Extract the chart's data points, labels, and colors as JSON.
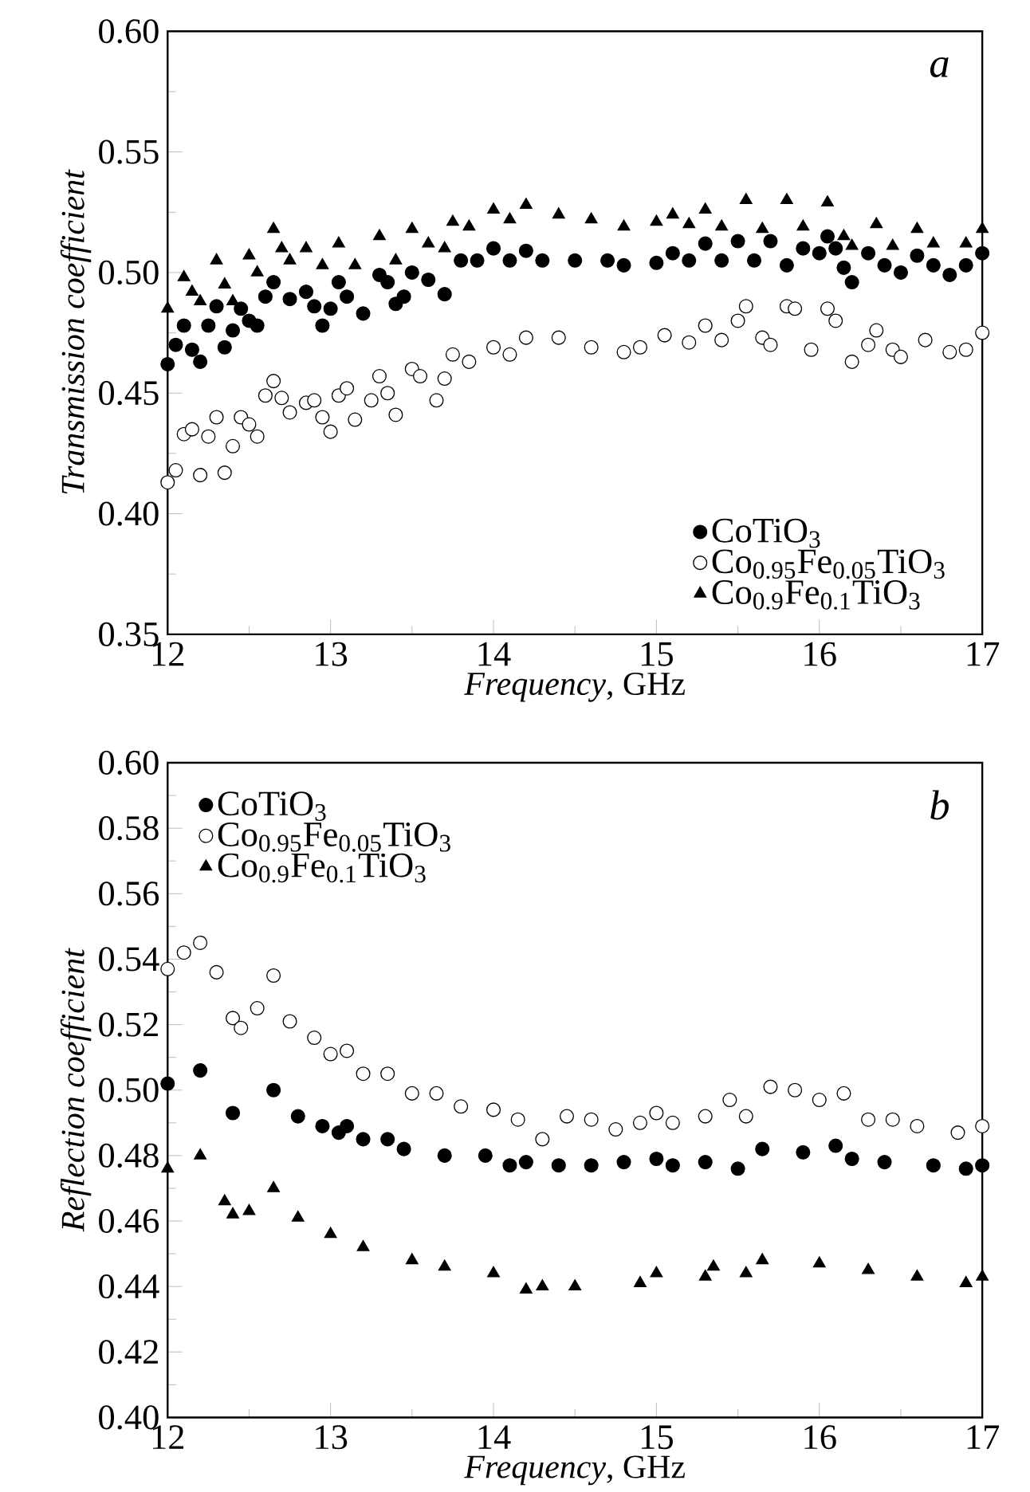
{
  "chart_data": [
    {
      "type": "scatter",
      "xlabel": "*Frequency*, GHz",
      "ylabel": "Transmission coefficient",
      "annotations": [
        "a"
      ],
      "xlim": [
        12,
        17
      ],
      "ylim": [
        0.35,
        0.6
      ],
      "xticks": [
        12,
        13,
        14,
        15,
        16,
        17
      ],
      "yticks": [
        {
          "value": 0.35,
          "label": "0.35"
        },
        {
          "value": 0.4,
          "label": "0.40"
        },
        {
          "value": 0.45,
          "label": "0.45"
        },
        {
          "value": 0.5,
          "label": "0.50"
        },
        {
          "value": 0.55,
          "label": "0.55"
        },
        {
          "value": 0.6,
          "label": "0.60"
        }
      ],
      "legend": "bottom right",
      "grid": false,
      "series": [
        {
          "name": "CoTiO$_{3}$",
          "color": "#000000",
          "marker": "circle",
          "x": [
            12.0,
            12.05,
            12.1,
            12.15,
            12.2,
            12.25,
            12.3,
            12.35,
            12.4,
            12.45,
            12.5,
            12.55,
            12.6,
            12.65,
            12.75,
            12.85,
            12.9,
            12.95,
            13.0,
            13.05,
            13.1,
            13.2,
            13.3,
            13.35,
            13.4,
            13.45,
            13.5,
            13.6,
            13.7,
            13.8,
            13.9,
            14.0,
            14.1,
            14.2,
            14.3,
            14.5,
            14.7,
            14.8,
            15.0,
            15.1,
            15.2,
            15.3,
            15.4,
            15.5,
            15.6,
            15.7,
            15.8,
            15.9,
            16.0,
            16.05,
            16.1,
            16.15,
            16.2,
            16.3,
            16.4,
            16.5,
            16.6,
            16.7,
            16.8,
            16.9,
            17.0
          ],
          "values": [
            0.462,
            0.47,
            0.478,
            0.468,
            0.463,
            0.478,
            0.486,
            0.469,
            0.476,
            0.485,
            0.48,
            0.478,
            0.49,
            0.496,
            0.489,
            0.492,
            0.486,
            0.478,
            0.485,
            0.496,
            0.49,
            0.483,
            0.499,
            0.496,
            0.487,
            0.49,
            0.5,
            0.497,
            0.491,
            0.505,
            0.505,
            0.51,
            0.505,
            0.509,
            0.505,
            0.505,
            0.505,
            0.503,
            0.504,
            0.508,
            0.505,
            0.512,
            0.505,
            0.513,
            0.505,
            0.513,
            0.503,
            0.51,
            0.508,
            0.515,
            0.51,
            0.502,
            0.496,
            0.508,
            0.503,
            0.5,
            0.507,
            0.503,
            0.499,
            0.503,
            0.508
          ]
        },
        {
          "name": "Co$_{0.95}$Fe$_{0.05}$TiO$_{3}$",
          "color": "#ffffff",
          "marker": "circle",
          "x": [
            12.0,
            12.05,
            12.1,
            12.15,
            12.2,
            12.25,
            12.3,
            12.35,
            12.4,
            12.45,
            12.5,
            12.55,
            12.6,
            12.65,
            12.7,
            12.75,
            12.85,
            12.9,
            12.95,
            13.0,
            13.05,
            13.1,
            13.15,
            13.25,
            13.3,
            13.35,
            13.4,
            13.5,
            13.55,
            13.65,
            13.7,
            13.75,
            13.85,
            14.0,
            14.1,
            14.2,
            14.4,
            14.6,
            14.8,
            14.9,
            15.05,
            15.2,
            15.3,
            15.4,
            15.5,
            15.55,
            15.65,
            15.7,
            15.8,
            15.85,
            15.95,
            16.05,
            16.1,
            16.2,
            16.3,
            16.35,
            16.45,
            16.5,
            16.65,
            16.8,
            16.9,
            17.0
          ],
          "values": [
            0.413,
            0.418,
            0.433,
            0.435,
            0.416,
            0.432,
            0.44,
            0.417,
            0.428,
            0.44,
            0.437,
            0.432,
            0.449,
            0.455,
            0.448,
            0.442,
            0.446,
            0.447,
            0.44,
            0.434,
            0.449,
            0.452,
            0.439,
            0.447,
            0.457,
            0.45,
            0.441,
            0.46,
            0.457,
            0.447,
            0.456,
            0.466,
            0.463,
            0.469,
            0.466,
            0.473,
            0.473,
            0.469,
            0.467,
            0.469,
            0.474,
            0.471,
            0.478,
            0.472,
            0.48,
            0.486,
            0.473,
            0.47,
            0.486,
            0.485,
            0.468,
            0.485,
            0.48,
            0.463,
            0.47,
            0.476,
            0.468,
            0.465,
            0.472,
            0.467,
            0.468,
            0.475
          ]
        },
        {
          "name": "Co$_{0.9}$Fe$_{0.1}$TiO$_{3}$",
          "color": "#000000",
          "marker": "triangle",
          "x": [
            12.0,
            12.1,
            12.15,
            12.2,
            12.3,
            12.35,
            12.4,
            12.5,
            12.55,
            12.65,
            12.7,
            12.75,
            12.85,
            12.95,
            13.05,
            13.15,
            13.3,
            13.4,
            13.5,
            13.6,
            13.7,
            13.75,
            13.85,
            14.0,
            14.1,
            14.2,
            14.4,
            14.6,
            14.8,
            15.0,
            15.1,
            15.2,
            15.3,
            15.4,
            15.55,
            15.65,
            15.8,
            15.9,
            16.05,
            16.15,
            16.2,
            16.35,
            16.45,
            16.6,
            16.7,
            16.9,
            17.0
          ],
          "values": [
            0.485,
            0.498,
            0.492,
            0.488,
            0.505,
            0.495,
            0.488,
            0.507,
            0.5,
            0.518,
            0.51,
            0.505,
            0.51,
            0.503,
            0.512,
            0.503,
            0.515,
            0.505,
            0.518,
            0.512,
            0.51,
            0.521,
            0.519,
            0.526,
            0.522,
            0.528,
            0.524,
            0.522,
            0.519,
            0.521,
            0.524,
            0.52,
            0.526,
            0.519,
            0.53,
            0.518,
            0.53,
            0.519,
            0.529,
            0.515,
            0.511,
            0.52,
            0.511,
            0.518,
            0.512,
            0.512,
            0.518
          ]
        }
      ]
    },
    {
      "type": "scatter",
      "xlabel": "*Frequency*, GHz",
      "ylabel": "Reflection coefficient",
      "annotations": [
        "b"
      ],
      "xlim": [
        12,
        17
      ],
      "ylim": [
        0.4,
        0.6
      ],
      "xticks": [
        12,
        13,
        14,
        15,
        16,
        17
      ],
      "yticks": [
        {
          "value": 0.4,
          "label": "0.40"
        },
        {
          "value": 0.42,
          "label": "0.42"
        },
        {
          "value": 0.44,
          "label": "0.44"
        },
        {
          "value": 0.46,
          "label": "0.46"
        },
        {
          "value": 0.48,
          "label": "0.48"
        },
        {
          "value": 0.5,
          "label": "0.50"
        },
        {
          "value": 0.52,
          "label": "0.52"
        },
        {
          "value": 0.54,
          "label": "0.54"
        },
        {
          "value": 0.56,
          "label": "0.56"
        },
        {
          "value": 0.58,
          "label": "0.58"
        },
        {
          "value": 0.6,
          "label": "0.60"
        }
      ],
      "legend": "top left",
      "grid": false,
      "series": [
        {
          "name": "CoTiO$_{3}$",
          "color": "#000000",
          "marker": "circle",
          "x": [
            12.0,
            12.2,
            12.4,
            12.65,
            12.8,
            12.95,
            13.05,
            13.1,
            13.2,
            13.35,
            13.45,
            13.7,
            13.95,
            14.1,
            14.2,
            14.4,
            14.6,
            14.8,
            15.0,
            15.1,
            15.3,
            15.5,
            15.65,
            15.9,
            16.1,
            16.2,
            16.4,
            16.7,
            16.9,
            17.0
          ],
          "values": [
            0.502,
            0.506,
            0.493,
            0.5,
            0.492,
            0.489,
            0.487,
            0.489,
            0.485,
            0.485,
            0.482,
            0.48,
            0.48,
            0.477,
            0.478,
            0.477,
            0.477,
            0.478,
            0.479,
            0.477,
            0.478,
            0.476,
            0.482,
            0.481,
            0.483,
            0.479,
            0.478,
            0.477,
            0.476,
            0.477
          ]
        },
        {
          "name": "Co$_{0.95}$Fe$_{0.05}$TiO$_{3}$",
          "color": "#ffffff",
          "marker": "circle",
          "x": [
            12.0,
            12.1,
            12.2,
            12.3,
            12.4,
            12.45,
            12.55,
            12.65,
            12.75,
            12.9,
            13.0,
            13.1,
            13.2,
            13.35,
            13.5,
            13.65,
            13.8,
            14.0,
            14.15,
            14.3,
            14.45,
            14.6,
            14.75,
            14.9,
            15.0,
            15.1,
            15.3,
            15.45,
            15.55,
            15.7,
            15.85,
            16.0,
            16.15,
            16.3,
            16.45,
            16.6,
            16.85,
            17.0
          ],
          "values": [
            0.537,
            0.542,
            0.545,
            0.536,
            0.522,
            0.519,
            0.525,
            0.535,
            0.521,
            0.516,
            0.511,
            0.512,
            0.505,
            0.505,
            0.499,
            0.499,
            0.495,
            0.494,
            0.491,
            0.485,
            0.492,
            0.491,
            0.488,
            0.49,
            0.493,
            0.49,
            0.492,
            0.497,
            0.492,
            0.501,
            0.5,
            0.497,
            0.499,
            0.491,
            0.491,
            0.489,
            0.487,
            0.489
          ]
        },
        {
          "name": "Co$_{0.9}$Fe$_{0.1}$TiO$_{3}$",
          "color": "#000000",
          "marker": "triangle",
          "x": [
            12.0,
            12.2,
            12.35,
            12.4,
            12.5,
            12.65,
            12.8,
            13.0,
            13.2,
            13.5,
            13.7,
            14.0,
            14.2,
            14.3,
            14.5,
            14.9,
            15.0,
            15.3,
            15.35,
            15.55,
            15.65,
            16.0,
            16.3,
            16.6,
            16.9,
            17.0
          ],
          "values": [
            0.476,
            0.48,
            0.466,
            0.462,
            0.463,
            0.47,
            0.461,
            0.456,
            0.452,
            0.448,
            0.446,
            0.444,
            0.439,
            0.44,
            0.44,
            0.441,
            0.444,
            0.443,
            0.446,
            0.444,
            0.448,
            0.447,
            0.445,
            0.443,
            0.441,
            0.443
          ]
        }
      ]
    }
  ]
}
